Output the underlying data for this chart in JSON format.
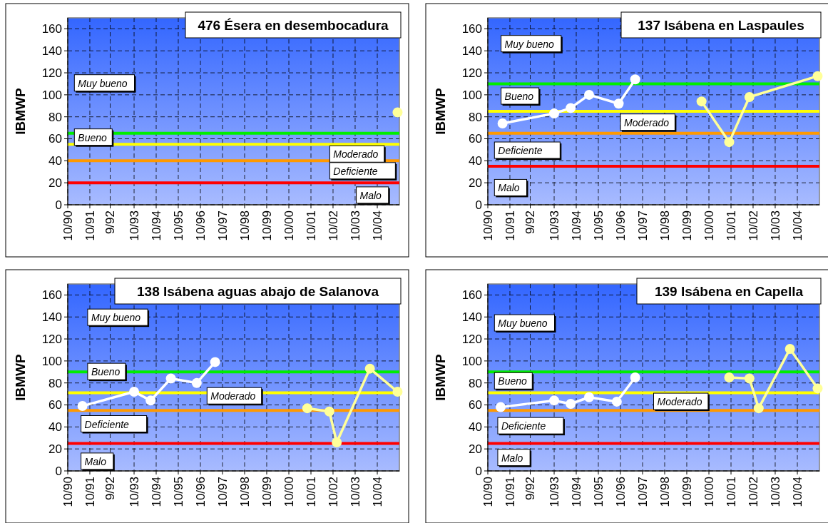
{
  "chart_data": [
    {
      "type": "line",
      "title": "476 Ésera en desembocadura",
      "ylabel": "IBMWP",
      "xlim": [
        "1990-10",
        "2005-10"
      ],
      "ylim": [
        0,
        170
      ],
      "xticks": [
        {
          "value": "1990-10",
          "label": "10/90"
        },
        {
          "value": "1991-10",
          "label": "10/91"
        },
        {
          "value": "1992-09",
          "label": "9/92"
        },
        {
          "value": "1993-10",
          "label": "10/93"
        },
        {
          "value": "1994-10",
          "label": "10/94"
        },
        {
          "value": "1995-10",
          "label": "10/95"
        },
        {
          "value": "1996-10",
          "label": "10/96"
        },
        {
          "value": "1997-10",
          "label": "10/97"
        },
        {
          "value": "1998-10",
          "label": "10/98"
        },
        {
          "value": "1999-10",
          "label": "10/99"
        },
        {
          "value": "2000-10",
          "label": "10/00"
        },
        {
          "value": "2001-10",
          "label": "10/01"
        },
        {
          "value": "2002-10",
          "label": "10/02"
        },
        {
          "value": "2003-10",
          "label": "10/03"
        },
        {
          "value": "2004-10",
          "label": "10/04"
        }
      ],
      "yticks": [
        0,
        20,
        40,
        60,
        80,
        100,
        120,
        140,
        160
      ],
      "grid": true,
      "marker": "circle",
      "series": [
        {
          "color": "#ffff99",
          "x": [
            "2005-09"
          ],
          "values": [
            84
          ]
        }
      ],
      "ref_lines": [
        {
          "axis": "y",
          "value": 65,
          "color": "#00ee00"
        },
        {
          "axis": "y",
          "value": 55,
          "color": "#ffff00"
        },
        {
          "axis": "y",
          "value": 40,
          "color": "#ff9900"
        },
        {
          "axis": "y",
          "value": 20,
          "color": "#ff0000"
        }
      ],
      "annotations": [
        "Muy bueno",
        "Bueno",
        "Moderado",
        "Deficiente",
        "Malo"
      ]
    },
    {
      "type": "line",
      "title": "137 Isábena en Laspaules",
      "ylabel": "IBMWP",
      "xlim": [
        "1990-10",
        "2005-10"
      ],
      "ylim": [
        0,
        170
      ],
      "xticks": [
        {
          "value": "1990-10",
          "label": "10/90"
        },
        {
          "value": "1991-10",
          "label": "10/91"
        },
        {
          "value": "1992-09",
          "label": "9/92"
        },
        {
          "value": "1993-10",
          "label": "10/93"
        },
        {
          "value": "1994-10",
          "label": "10/94"
        },
        {
          "value": "1995-10",
          "label": "10/95"
        },
        {
          "value": "1996-10",
          "label": "10/96"
        },
        {
          "value": "1997-10",
          "label": "10/97"
        },
        {
          "value": "1998-10",
          "label": "10/98"
        },
        {
          "value": "1999-10",
          "label": "10/99"
        },
        {
          "value": "2000-10",
          "label": "10/00"
        },
        {
          "value": "2001-10",
          "label": "10/01"
        },
        {
          "value": "2002-10",
          "label": "10/02"
        },
        {
          "value": "2003-10",
          "label": "10/03"
        },
        {
          "value": "2004-10",
          "label": "10/04"
        }
      ],
      "yticks": [
        0,
        20,
        40,
        60,
        80,
        100,
        120,
        140,
        160
      ],
      "grid": true,
      "marker": "circle",
      "series": [
        {
          "color": "#ffffff",
          "x": [
            "1991-06",
            "1993-10",
            "1994-07",
            "1995-05",
            "1996-09",
            "1997-06"
          ],
          "values": [
            74,
            83,
            88,
            100,
            92,
            114
          ]
        },
        {
          "color": "#ffff99",
          "x": [
            "2000-06",
            "2001-09",
            "2002-08",
            "2005-09"
          ],
          "values": [
            94,
            57,
            98,
            117
          ]
        }
      ],
      "ref_lines": [
        {
          "axis": "y",
          "value": 110,
          "color": "#00ee00"
        },
        {
          "axis": "y",
          "value": 85,
          "color": "#ffff00"
        },
        {
          "axis": "y",
          "value": 65,
          "color": "#ff9900"
        },
        {
          "axis": "y",
          "value": 35,
          "color": "#ff0000"
        }
      ],
      "annotations": [
        "Muy bueno",
        "Bueno",
        "Moderado",
        "Deficiente",
        "Malo"
      ]
    },
    {
      "type": "line",
      "title": "138 Isábena aguas abajo de Salanova",
      "ylabel": "IBMWP",
      "xlim": [
        "1990-10",
        "2005-10"
      ],
      "ylim": [
        0,
        170
      ],
      "xticks": [
        {
          "value": "1990-10",
          "label": "10/90"
        },
        {
          "value": "1991-10",
          "label": "10/91"
        },
        {
          "value": "1992-09",
          "label": "9/92"
        },
        {
          "value": "1993-10",
          "label": "10/93"
        },
        {
          "value": "1994-10",
          "label": "10/94"
        },
        {
          "value": "1995-10",
          "label": "10/95"
        },
        {
          "value": "1996-10",
          "label": "10/96"
        },
        {
          "value": "1997-10",
          "label": "10/97"
        },
        {
          "value": "1998-10",
          "label": "10/98"
        },
        {
          "value": "1999-10",
          "label": "10/99"
        },
        {
          "value": "2000-10",
          "label": "10/00"
        },
        {
          "value": "2001-10",
          "label": "10/01"
        },
        {
          "value": "2002-10",
          "label": "10/02"
        },
        {
          "value": "2003-10",
          "label": "10/03"
        },
        {
          "value": "2004-10",
          "label": "10/04"
        }
      ],
      "yticks": [
        0,
        20,
        40,
        60,
        80,
        100,
        120,
        140,
        160
      ],
      "grid": true,
      "marker": "circle",
      "series": [
        {
          "color": "#ffffff",
          "x": [
            "1991-06",
            "1993-10",
            "1994-07",
            "1995-06",
            "1996-08",
            "1997-06"
          ],
          "values": [
            59,
            72,
            64,
            84,
            80,
            99
          ]
        },
        {
          "color": "#ffff99",
          "x": [
            "2001-08",
            "2002-08",
            "2002-12",
            "2004-06",
            "2005-09"
          ],
          "values": [
            57,
            54,
            26,
            93,
            72
          ]
        }
      ],
      "ref_lines": [
        {
          "axis": "y",
          "value": 90,
          "color": "#00ee00"
        },
        {
          "axis": "y",
          "value": 71,
          "color": "#ffff00"
        },
        {
          "axis": "y",
          "value": 55,
          "color": "#ff9900"
        },
        {
          "axis": "y",
          "value": 25,
          "color": "#ff0000"
        }
      ],
      "annotations": [
        "Muy bueno",
        "Bueno",
        "Moderado",
        "Deficiente",
        "Malo"
      ]
    },
    {
      "type": "line",
      "title": "139 Isábena en Capella",
      "ylabel": "IBMWP",
      "xlim": [
        "1990-10",
        "2005-10"
      ],
      "ylim": [
        0,
        170
      ],
      "xticks": [
        {
          "value": "1990-10",
          "label": "10/90"
        },
        {
          "value": "1991-10",
          "label": "10/91"
        },
        {
          "value": "1992-09",
          "label": "9/92"
        },
        {
          "value": "1993-10",
          "label": "10/93"
        },
        {
          "value": "1994-10",
          "label": "10/94"
        },
        {
          "value": "1995-10",
          "label": "10/95"
        },
        {
          "value": "1996-10",
          "label": "10/96"
        },
        {
          "value": "1997-10",
          "label": "10/97"
        },
        {
          "value": "1998-10",
          "label": "10/98"
        },
        {
          "value": "1999-10",
          "label": "10/99"
        },
        {
          "value": "2000-10",
          "label": "10/00"
        },
        {
          "value": "2001-10",
          "label": "10/01"
        },
        {
          "value": "2002-10",
          "label": "10/02"
        },
        {
          "value": "2003-10",
          "label": "10/03"
        },
        {
          "value": "2004-10",
          "label": "10/04"
        }
      ],
      "yticks": [
        0,
        20,
        40,
        60,
        80,
        100,
        120,
        140,
        160
      ],
      "grid": true,
      "marker": "circle",
      "series": [
        {
          "color": "#ffffff",
          "x": [
            "1991-05",
            "1993-10",
            "1994-07",
            "1995-05",
            "1996-08",
            "1997-06"
          ],
          "values": [
            58,
            64,
            61,
            67,
            63,
            85
          ]
        },
        {
          "color": "#ffff99",
          "x": [
            "2001-09",
            "2002-08",
            "2003-01",
            "2004-06",
            "2005-09"
          ],
          "values": [
            85,
            84,
            57,
            111,
            75
          ]
        }
      ],
      "ref_lines": [
        {
          "axis": "y",
          "value": 90,
          "color": "#00ee00"
        },
        {
          "axis": "y",
          "value": 71,
          "color": "#ffff00"
        },
        {
          "axis": "y",
          "value": 55,
          "color": "#ff9900"
        },
        {
          "axis": "y",
          "value": 25,
          "color": "#ff0000"
        }
      ],
      "annotations": [
        "Muy bueno",
        "Bueno",
        "Moderado",
        "Deficiente",
        "Malo"
      ]
    }
  ]
}
